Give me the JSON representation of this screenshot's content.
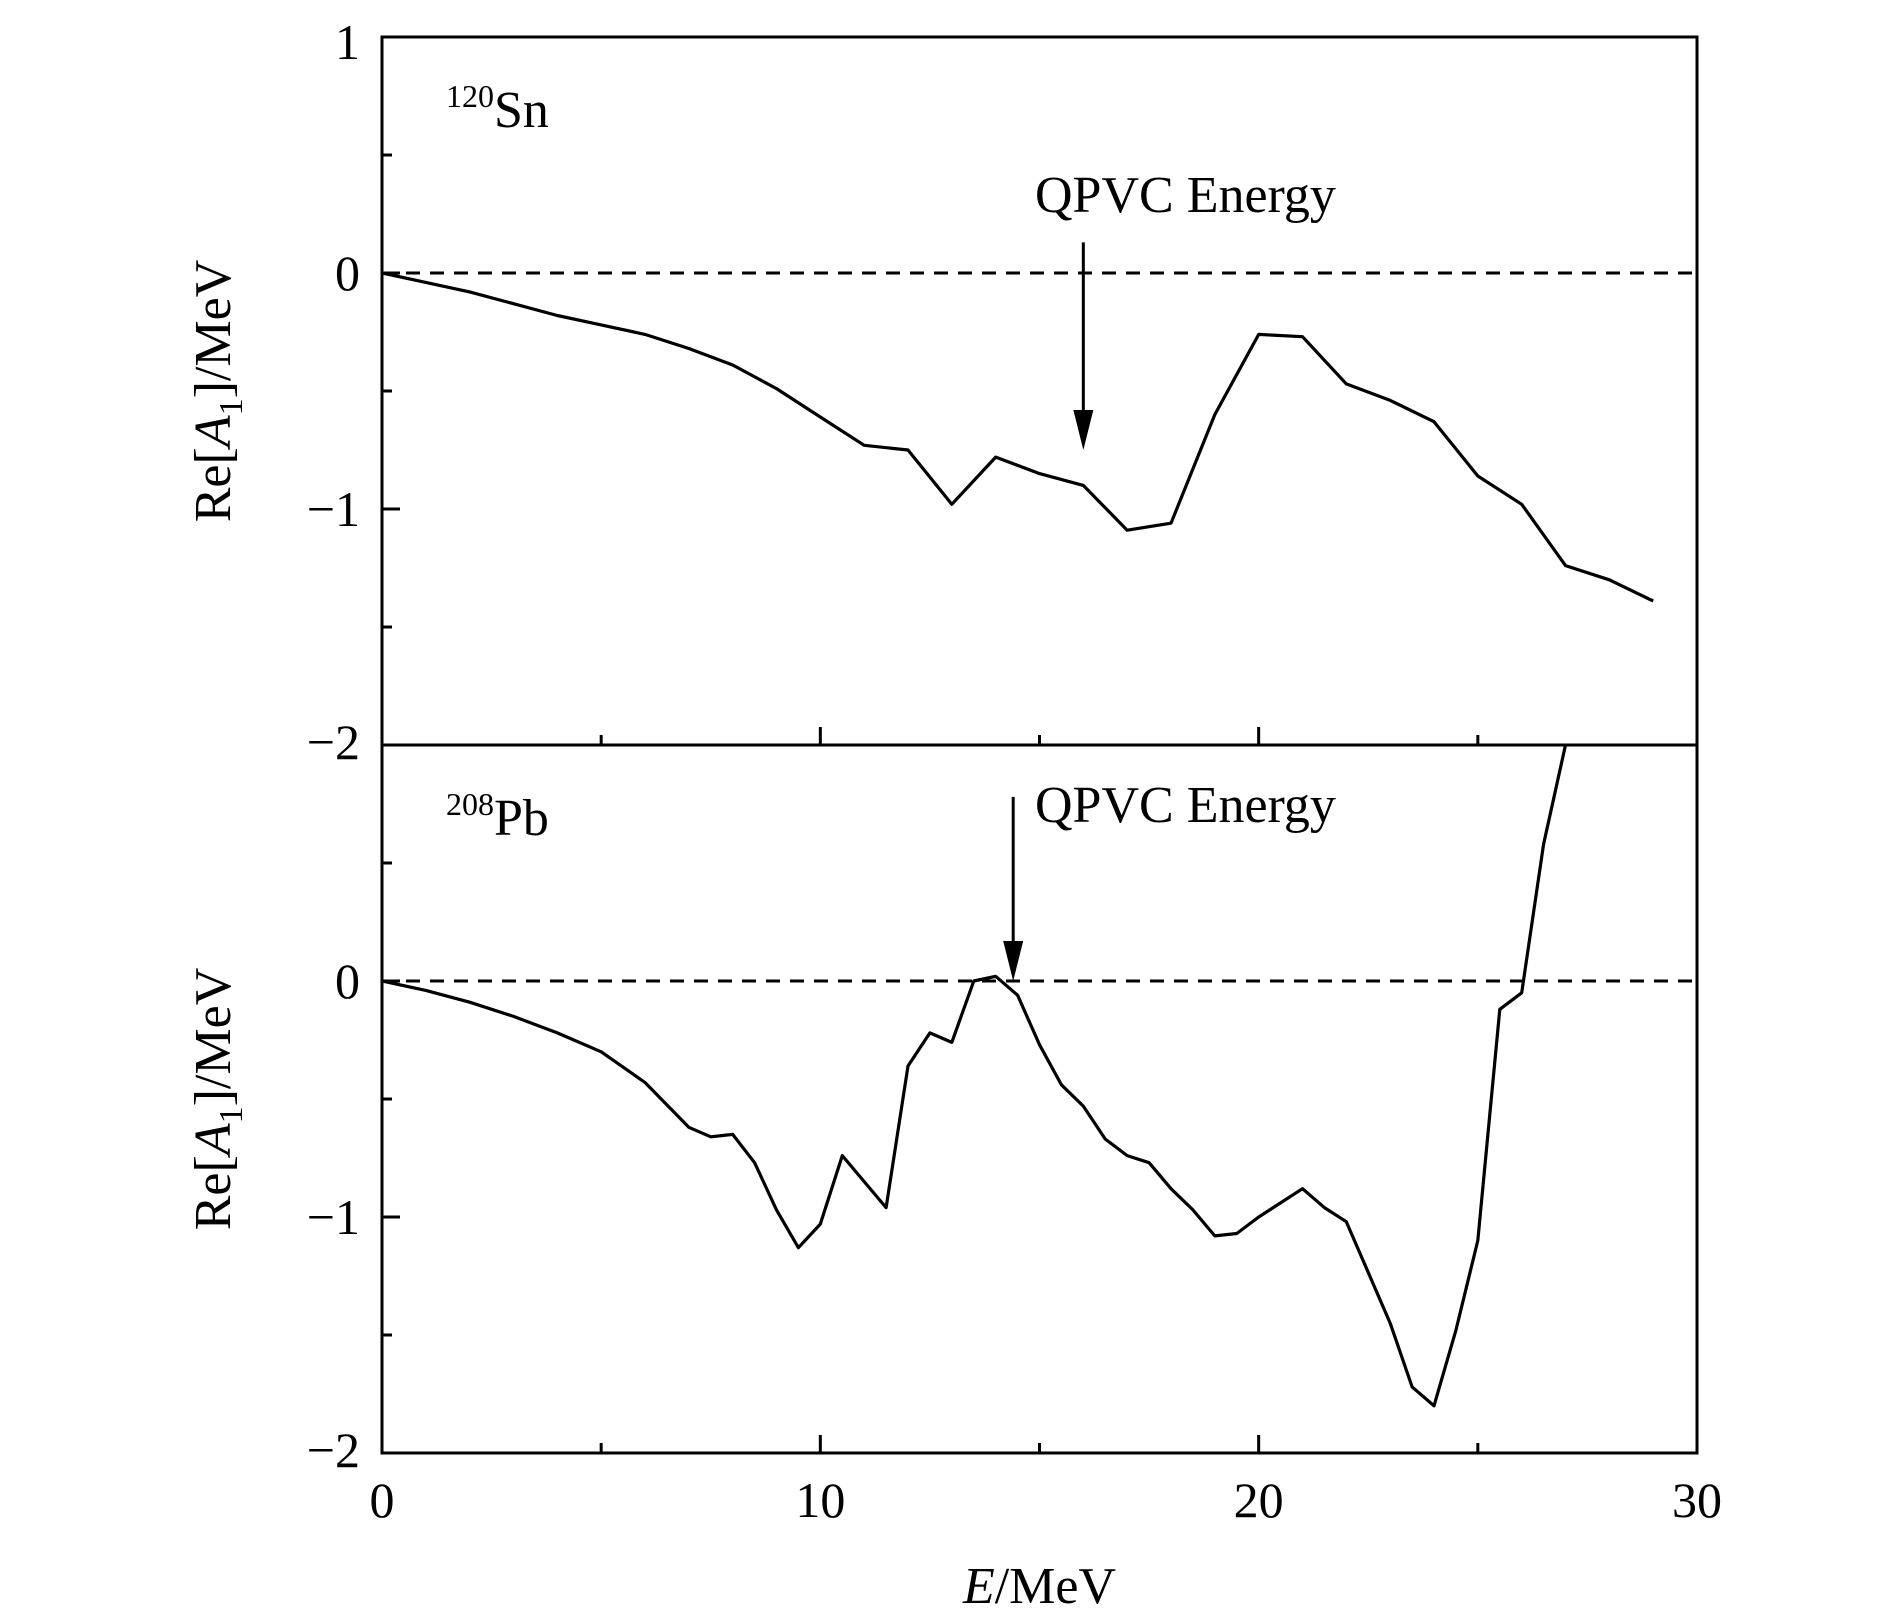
{
  "chart_data": [
    {
      "type": "line",
      "nucleus_mass": "120",
      "nucleus_symbol": "Sn",
      "ylabel": {
        "prefix": "Re[",
        "var": "A",
        "sub": "1",
        "suffix": "]/MeV"
      },
      "xlim": [
        0,
        30
      ],
      "ylim": [
        -2,
        1
      ],
      "yticks": [
        "1",
        "0",
        "−1",
        "−2"
      ],
      "yticks_values": [
        1,
        0,
        -1,
        -2
      ],
      "reference_line_y": 0,
      "annotation": {
        "text": "QPVC Energy",
        "x": 16,
        "arrow_from_y": 0.13,
        "arrow_to_y": -0.75
      },
      "series": [
        {
          "x": [
            0,
            1,
            2,
            3,
            4,
            5,
            6,
            7,
            8,
            9,
            10,
            11,
            12,
            13,
            14,
            15,
            16,
            17,
            18,
            19,
            20,
            21,
            22,
            23,
            24,
            25,
            26,
            27,
            28,
            29
          ],
          "y": [
            0,
            -0.04,
            -0.08,
            -0.13,
            -0.18,
            -0.22,
            -0.26,
            -0.32,
            -0.39,
            -0.49,
            -0.61,
            -0.73,
            -0.75,
            -0.98,
            -0.78,
            -0.85,
            -0.9,
            -1.09,
            -1.06,
            -0.6,
            -0.26,
            -0.27,
            -0.47,
            -0.54,
            -0.63,
            -0.86,
            -0.98,
            -1.24,
            -1.3,
            -1.39
          ]
        }
      ]
    },
    {
      "type": "line",
      "nucleus_mass": "208",
      "nucleus_symbol": "Pb",
      "ylabel": {
        "prefix": "Re[",
        "var": "A",
        "sub": "1",
        "suffix": "]/MeV"
      },
      "xlabel": {
        "var": "E",
        "suffix": "/MeV"
      },
      "xlim": [
        0,
        30
      ],
      "ylim": [
        -2,
        1
      ],
      "xticks": [
        "0",
        "10",
        "20",
        "30"
      ],
      "xticks_values": [
        0,
        10,
        20,
        30
      ],
      "yticks": [
        "0",
        "−1",
        "−2"
      ],
      "yticks_values": [
        0,
        -1,
        -2
      ],
      "reference_line_y": 0,
      "annotation": {
        "text": "QPVC Energy",
        "x": 14.4,
        "arrow_from_y": 0.78,
        "arrow_to_y": 0
      },
      "series": [
        {
          "x": [
            0,
            1,
            2,
            3,
            4,
            5,
            6,
            7,
            7.5,
            8,
            8.5,
            9,
            9.5,
            10,
            10.5,
            11,
            11.5,
            12,
            12.5,
            13,
            13.5,
            14,
            14.5,
            15,
            15.5,
            16,
            16.5,
            17,
            17.5,
            18,
            18.5,
            19,
            19.5,
            20,
            21,
            21.5,
            22,
            23,
            23.5,
            24,
            24.5,
            25,
            25.5,
            26,
            26.5,
            27
          ],
          "y": [
            0,
            -0.04,
            -0.09,
            -0.15,
            -0.22,
            -0.3,
            -0.43,
            -0.62,
            -0.66,
            -0.65,
            -0.77,
            -0.97,
            -1.13,
            -1.03,
            -0.74,
            -0.85,
            -0.96,
            -0.36,
            -0.22,
            -0.26,
            0,
            0.02,
            -0.06,
            -0.27,
            -0.44,
            -0.53,
            -0.67,
            -0.74,
            -0.77,
            -0.88,
            -0.97,
            -1.08,
            -1.07,
            -1.0,
            -0.88,
            -0.96,
            -1.02,
            -1.45,
            -1.72,
            -1.8,
            -1.48,
            -1.1,
            -0.12,
            -0.05,
            0.58,
            1.0
          ]
        }
      ]
    }
  ]
}
